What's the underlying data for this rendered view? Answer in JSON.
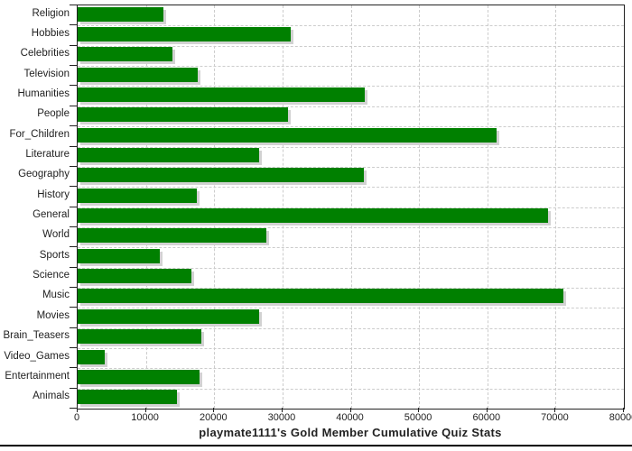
{
  "chart_data": {
    "type": "bar",
    "orientation": "horizontal",
    "title": "playmate1111's Gold Member Cumulative Quiz Stats",
    "categories": [
      "Religion",
      "Hobbies",
      "Celebrities",
      "Television",
      "Humanities",
      "People",
      "For_Children",
      "Literature",
      "Geography",
      "History",
      "General",
      "World",
      "Sports",
      "Science",
      "Music",
      "Movies",
      "Brain_Teasers",
      "Video_Games",
      "Entertainment",
      "Animals"
    ],
    "values": [
      12500,
      31200,
      13900,
      17600,
      42100,
      30800,
      61400,
      26600,
      41900,
      17400,
      68900,
      27600,
      12000,
      16600,
      71100,
      26600,
      18100,
      3900,
      17800,
      14600
    ],
    "xlabel": "",
    "ylabel": "",
    "xlim": [
      0,
      80000
    ],
    "x_ticks": [
      0,
      10000,
      20000,
      30000,
      40000,
      50000,
      60000,
      70000,
      80000
    ],
    "grid": true,
    "gridline_style": "dashed",
    "legend_position": "none",
    "colors": {
      "bar": "#008000",
      "bar_shadow": "#d2d2d2",
      "gridline": "#cccccc",
      "axis": "#222222",
      "text": "#222222",
      "background": "#ffffff"
    }
  }
}
